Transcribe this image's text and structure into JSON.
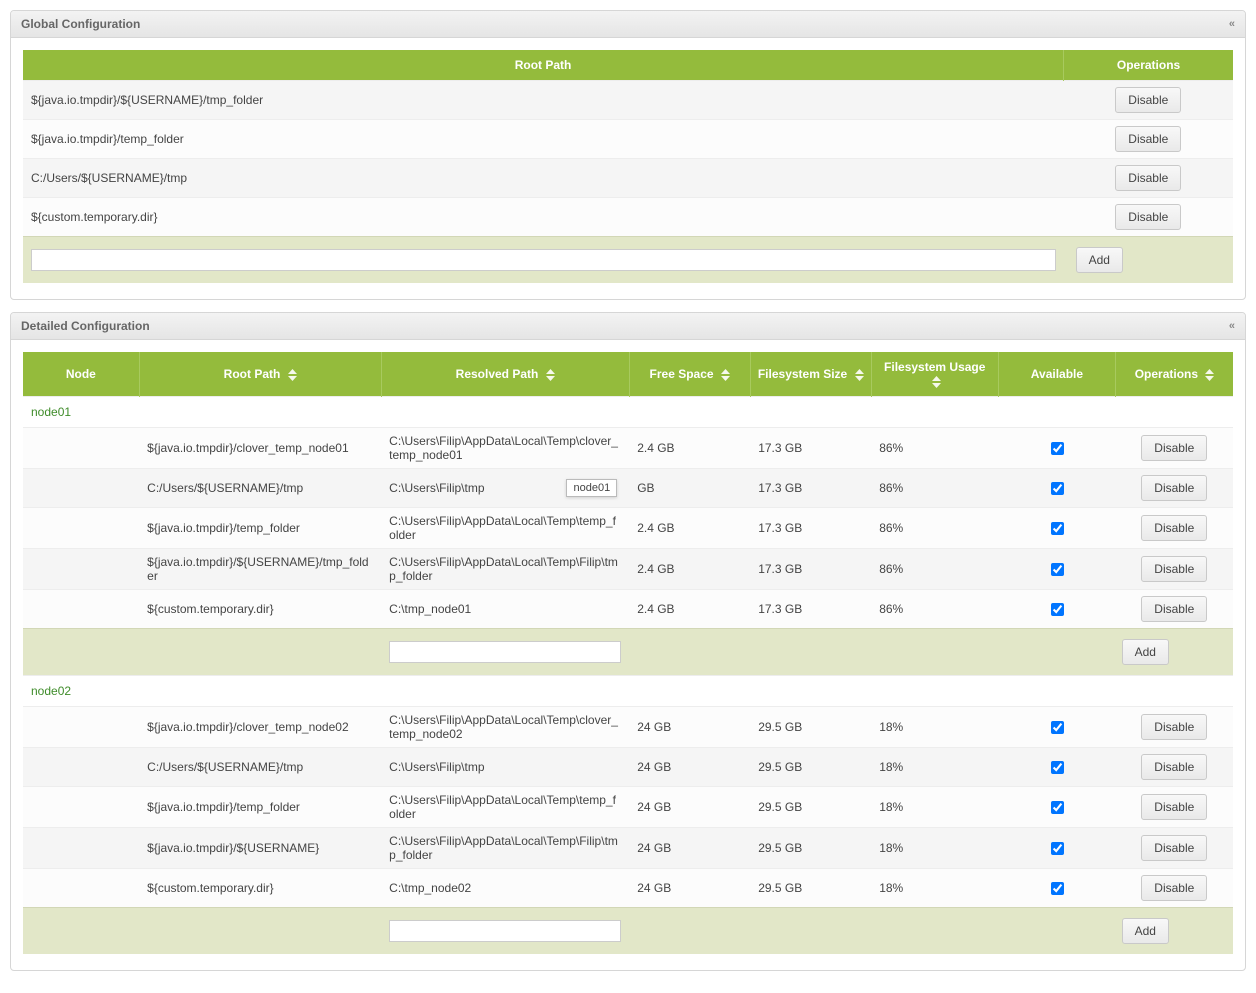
{
  "colors": {
    "header_bg": "#94bb3c",
    "header_border": "#a8ca5e",
    "header_text": "#ffffff",
    "panel_header_grad_top": "#f3f3f3",
    "panel_header_grad_bot": "#e5e5e5",
    "panel_border": "#d6d6d6",
    "row_even": "#f5f5f5",
    "row_odd": "#fcfcfc",
    "add_row_bg": "#e2e7c8",
    "group_text": "#3f8c2a"
  },
  "buttons": {
    "disable": "Disable",
    "add": "Add"
  },
  "global": {
    "title": "Global Configuration",
    "columns": {
      "root": "Root Path",
      "ops": "Operations"
    },
    "col_widths": {
      "root": "86%",
      "ops": "14%"
    },
    "rows": [
      {
        "root": "${java.io.tmpdir}/${USERNAME}/tmp_folder"
      },
      {
        "root": "${java.io.tmpdir}/temp_folder"
      },
      {
        "root": "C:/Users/${USERNAME}/tmp"
      },
      {
        "root": "${custom.temporary.dir}"
      }
    ],
    "add_input_value": ""
  },
  "detailed": {
    "title": "Detailed Configuration",
    "columns": {
      "node": "Node",
      "root": "Root Path",
      "resolved": "Resolved Path",
      "free": "Free Space",
      "fssize": "Filesystem Size",
      "fsusage": "Filesystem Usage",
      "available": "Available",
      "ops": "Operations"
    },
    "col_widths": {
      "node": "9.6%",
      "root": "20%",
      "resolved": "20.5%",
      "free": "10%",
      "fssize": "10%",
      "fsusage": "10.5%",
      "available": "9.7%",
      "ops": "9.7%"
    },
    "tooltip": {
      "text": "node01",
      "row_group": 0,
      "row_index": 1
    },
    "groups": [
      {
        "name": "node01",
        "rows": [
          {
            "root": "${java.io.tmpdir}/clover_temp_node01",
            "resolved": "C:\\Users\\Filip\\AppData\\Local\\Temp\\clover_temp_node01",
            "free": "2.4 GB",
            "fssize": "17.3 GB",
            "fsusage": "86%",
            "available": true
          },
          {
            "root": "C:/Users/${USERNAME}/tmp",
            "resolved": "C:\\Users\\Filip\\tmp",
            "free": "GB",
            "fssize": "17.3 GB",
            "fsusage": "86%",
            "available": true,
            "show_tooltip": true
          },
          {
            "root": "${java.io.tmpdir}/temp_folder",
            "resolved": "C:\\Users\\Filip\\AppData\\Local\\Temp\\temp_folder",
            "free": "2.4 GB",
            "fssize": "17.3 GB",
            "fsusage": "86%",
            "available": true
          },
          {
            "root": "${java.io.tmpdir}/${USERNAME}/tmp_folder",
            "resolved": "C:\\Users\\Filip\\AppData\\Local\\Temp\\Filip\\tmp_folder",
            "free": "2.4 GB",
            "fssize": "17.3 GB",
            "fsusage": "86%",
            "available": true
          },
          {
            "root": "${custom.temporary.dir}",
            "resolved": "C:\\tmp_node01",
            "free": "2.4 GB",
            "fssize": "17.3 GB",
            "fsusage": "86%",
            "available": true
          }
        ],
        "add_input_value": ""
      },
      {
        "name": "node02",
        "rows": [
          {
            "root": "${java.io.tmpdir}/clover_temp_node02",
            "resolved": "C:\\Users\\Filip\\AppData\\Local\\Temp\\clover_temp_node02",
            "free": "24 GB",
            "fssize": "29.5 GB",
            "fsusage": "18%",
            "available": true
          },
          {
            "root": "C:/Users/${USERNAME}/tmp",
            "resolved": "C:\\Users\\Filip\\tmp",
            "free": "24 GB",
            "fssize": "29.5 GB",
            "fsusage": "18%",
            "available": true
          },
          {
            "root": "${java.io.tmpdir}/temp_folder",
            "resolved": "C:\\Users\\Filip\\AppData\\Local\\Temp\\temp_folder",
            "free": "24 GB",
            "fssize": "29.5 GB",
            "fsusage": "18%",
            "available": true
          },
          {
            "root": "${java.io.tmpdir}/${USERNAME}",
            "resolved": "C:\\Users\\Filip\\AppData\\Local\\Temp\\Filip\\tmp_folder",
            "free": "24 GB",
            "fssize": "29.5 GB",
            "fsusage": "18%",
            "available": true
          },
          {
            "root": "${custom.temporary.dir}",
            "resolved": "C:\\tmp_node02",
            "free": "24 GB",
            "fssize": "29.5 GB",
            "fsusage": "18%",
            "available": true
          }
        ],
        "add_input_value": ""
      }
    ]
  }
}
